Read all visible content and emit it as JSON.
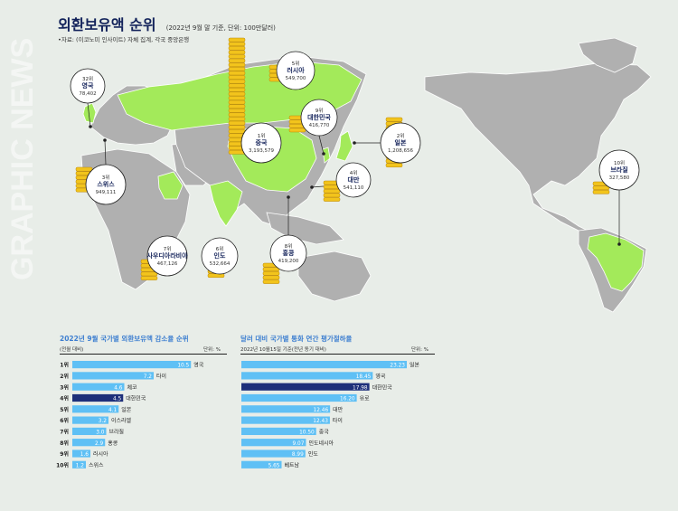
{
  "header": {
    "title": "외환보유액 순위",
    "note": "(2022년 9월 말 기준, 단위: 100만달러)",
    "source": "•자료: (이코노미 인사이트) 자체 집계, 각국 중앙은행"
  },
  "watermark": "GRAPHIC NEWS",
  "colors": {
    "highlight_land": "#a3ea5a",
    "land": "#b0b0b0",
    "bar": "#5fc0f5",
    "bar_highlight": "#1d2f7a",
    "title_blue": "#3e7fd0",
    "coin": "#f2c41c"
  },
  "callouts": [
    {
      "rank": "32위",
      "country": "영국",
      "value": "78,402"
    },
    {
      "rank": "5위",
      "country": "러시아",
      "value": "549,700"
    },
    {
      "rank": "9위",
      "country": "대한민국",
      "value": "416,770"
    },
    {
      "rank": "1위",
      "country": "중국",
      "value": "3,193,579"
    },
    {
      "rank": "2위",
      "country": "일본",
      "value": "1,208,656"
    },
    {
      "rank": "3위",
      "country": "스위스",
      "value": "949,111"
    },
    {
      "rank": "4위",
      "country": "대만",
      "value": "541,110"
    },
    {
      "rank": "10위",
      "country": "브라질",
      "value": "327,580"
    },
    {
      "rank": "7위",
      "country": "사우디아라비아",
      "value": "467,126"
    },
    {
      "rank": "6위",
      "country": "인도",
      "value": "532,664"
    },
    {
      "rank": "8위",
      "country": "홍콩",
      "value": "419,200"
    }
  ],
  "chart_data": [
    {
      "type": "bar",
      "orientation": "horizontal",
      "title": "2022년 9월 국가별 외환보유액 감소율 순위",
      "subtitle": "(전월 대비)",
      "unit": "단위: %",
      "ranks": [
        "1위",
        "2위",
        "3위",
        "4위",
        "5위",
        "6위",
        "7위",
        "8위",
        "9위",
        "10위"
      ],
      "categories": [
        "영국",
        "타이",
        "체코",
        "대한민국",
        "일본",
        "이스라엘",
        "브라질",
        "홍콩",
        "러시아",
        "스위스"
      ],
      "values": [
        10.5,
        7.2,
        4.6,
        4.5,
        4.1,
        3.2,
        3.0,
        2.9,
        1.6,
        1.2
      ],
      "labels": [
        "10.5",
        "7.2",
        "4.6",
        "4.5",
        "4.1",
        "3.2",
        "3.0",
        "2.9",
        "1.6",
        "1.2"
      ],
      "highlight": "대한민국",
      "xlim": [
        0,
        12
      ]
    },
    {
      "type": "bar",
      "orientation": "horizontal",
      "title": "달러 대비 국가별 통화 연간 평가절하율",
      "subtitle": "2022년 10월15일 기준(전년 동기 대비)",
      "unit": "단위: %",
      "categories": [
        "일본",
        "영국",
        "대한민국",
        "유로",
        "대만",
        "타이",
        "중국",
        "인도네시아",
        "인도",
        "베트남"
      ],
      "values": [
        23.23,
        18.45,
        17.98,
        16.2,
        12.46,
        12.43,
        10.5,
        9.07,
        8.99,
        5.65
      ],
      "labels": [
        "23.23",
        "18.45",
        "17.98",
        "16.20",
        "12.46",
        "12.43",
        "10.50",
        "9.07",
        "8.99",
        "5.65"
      ],
      "highlight": "대한민국",
      "xlim": [
        0,
        24.5
      ]
    }
  ]
}
